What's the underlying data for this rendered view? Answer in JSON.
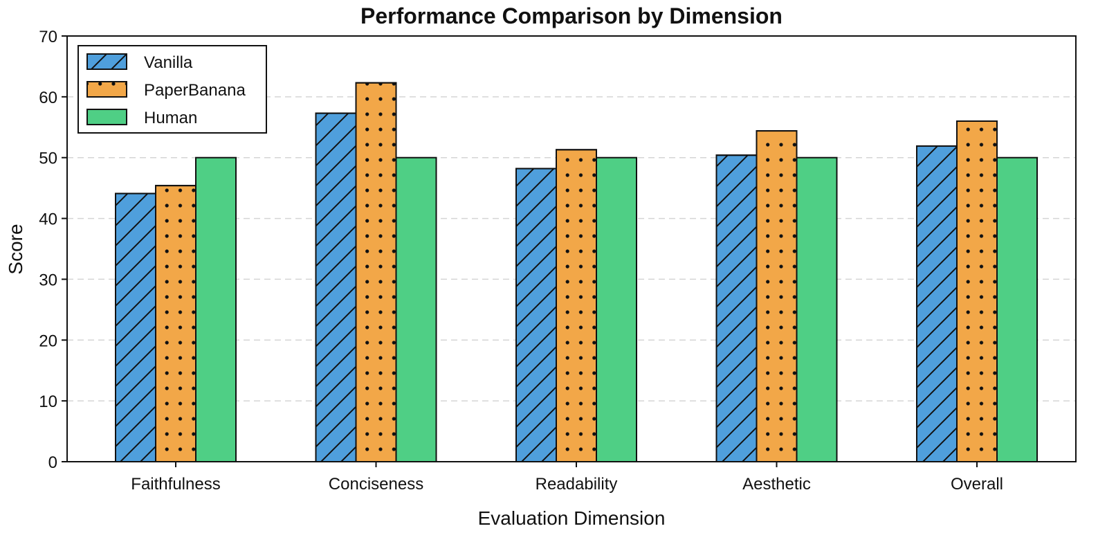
{
  "chart_data": {
    "type": "bar",
    "title": "Performance Comparison by Dimension",
    "xlabel": "Evaluation Dimension",
    "ylabel": "Score",
    "ylim": [
      0,
      70
    ],
    "yticks": [
      0,
      10,
      20,
      30,
      40,
      50,
      60,
      70
    ],
    "grid": "horizontal dashed",
    "legend_position": "top-left",
    "categories": [
      "Faithfulness",
      "Conciseness",
      "Readability",
      "Aesthetic",
      "Overall"
    ],
    "series": [
      {
        "name": "Vanilla",
        "color": "#4f9fdc",
        "hatch": "diagonal",
        "values": [
          44.1,
          57.3,
          48.2,
          50.4,
          51.9
        ]
      },
      {
        "name": "PaperBanana",
        "color": "#f2a748",
        "hatch": "dots",
        "values": [
          45.4,
          62.3,
          51.3,
          54.4,
          56.0
        ]
      },
      {
        "name": "Human",
        "color": "#4fcf85",
        "hatch": "none",
        "values": [
          50.0,
          50.0,
          50.0,
          50.0,
          50.0
        ]
      }
    ]
  }
}
